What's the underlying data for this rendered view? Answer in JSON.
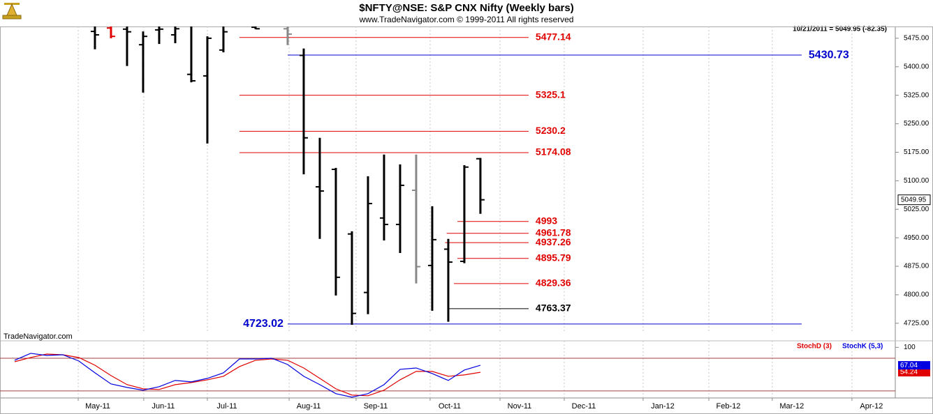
{
  "chart_data": [
    {
      "type": "ohlc",
      "title": "$NFTY@NSE:  S&P CNX Nifty  (Weekly bars)",
      "subtitle": "www.TradeNavigator.com © 1999-2011 All rights reserved",
      "info": "10/21/2011 = 5049.95 (-82.35)",
      "watermark": "TradeNavigator.com",
      "x": [
        0,
        1,
        2,
        3,
        4,
        5,
        6,
        7,
        8,
        10,
        12,
        13,
        14,
        15,
        16,
        17,
        18,
        19,
        20,
        21,
        22,
        23,
        24
      ],
      "open": [
        5493,
        5502,
        5499,
        5458,
        5497,
        5484,
        5380,
        5376,
        5444,
        5504,
        5500,
        5430,
        5084,
        5130,
        4960,
        4806,
        5002,
        4985,
        5075,
        4877,
        4920,
        4888,
        5158
      ],
      "high": [
        5506,
        5506,
        5506,
        5493,
        5506,
        5506,
        5506,
        5480,
        5506,
        5506,
        5506,
        5448,
        5213,
        5134,
        4967,
        5112,
        5169,
        5143,
        5169,
        5033,
        4947,
        5141,
        5160
      ],
      "low": [
        5446,
        5475,
        5402,
        5332,
        5460,
        5462,
        5359,
        5198,
        5438,
        5499,
        5457,
        5117,
        4947,
        4798,
        4721,
        4749,
        4943,
        4910,
        4830,
        4758,
        4729,
        4883,
        5013
      ],
      "close": [
        5484,
        5480,
        5492,
        5480,
        5499,
        5500,
        5363,
        5475,
        5492,
        5500,
        5486,
        5213,
        5073,
        4846,
        4751,
        5040,
        4985,
        5088,
        4874,
        4945,
        4886,
        5136,
        5049.95
      ],
      "colors": [
        "#000000",
        "#e00000",
        "#000000",
        "#000000",
        "#000000",
        "#000000",
        "#000000",
        "#000000",
        "#000000",
        "#000000",
        "#888888",
        "#000000",
        "#000000",
        "#000000",
        "#000000",
        "#000000",
        "#000000",
        "#000000",
        "#888888",
        "#000000",
        "#000000",
        "#000000",
        "#000000"
      ],
      "xlim": [
        -5.91,
        49.83
      ],
      "xticks": [
        {
          "value": -1.04,
          "label": "May-11"
        },
        {
          "value": 3.04,
          "label": "Jun-11"
        },
        {
          "value": 7.0,
          "label": "Jul-11"
        },
        {
          "value": 12.09,
          "label": "Aug-11"
        },
        {
          "value": 16.26,
          "label": "Sep-11"
        },
        {
          "value": 20.87,
          "label": "Oct-11"
        },
        {
          "value": 25.22,
          "label": "Nov-11"
        },
        {
          "value": 29.22,
          "label": "Dec-11"
        },
        {
          "value": 34.13,
          "label": "Jan-12"
        },
        {
          "value": 38.22,
          "label": "Feb-12"
        },
        {
          "value": 42.17,
          "label": "Mar-12"
        },
        {
          "value": 47.13,
          "label": "Apr-12"
        }
      ],
      "grid": "x",
      "ylim": [
        4699,
        5506
      ],
      "yticks": [
        {
          "value": 4725,
          "label": "4725.00"
        },
        {
          "value": 4800,
          "label": "4800.00"
        },
        {
          "value": 4875,
          "label": "4875.00"
        },
        {
          "value": 4950,
          "label": "4950.00"
        },
        {
          "value": 5025,
          "label": "5025.00"
        },
        {
          "value": 5100,
          "label": "5100.00"
        },
        {
          "value": 5175,
          "label": "5175.00"
        },
        {
          "value": 5250,
          "label": "5250.00"
        },
        {
          "value": 5325,
          "label": "5325.00"
        },
        {
          "value": 5400,
          "label": "5400.00"
        },
        {
          "value": 5475,
          "label": "5475.00"
        }
      ],
      "levels": [
        {
          "value": 5477.14,
          "color": "#e00000",
          "start": 9.0,
          "end": 27.0,
          "label_side": "right"
        },
        {
          "value": 5430.73,
          "color": "#0000cc",
          "start": 12.0,
          "end": 44.0,
          "label_side": "right"
        },
        {
          "value": 5325.1,
          "color": "#e00000",
          "start": 9.0,
          "end": 27.0,
          "label_side": "right"
        },
        {
          "value": 5230.2,
          "color": "#e00000",
          "start": 9.0,
          "end": 27.0,
          "label_side": "right"
        },
        {
          "value": 5174.08,
          "color": "#e00000",
          "start": 9.0,
          "end": 27.0,
          "label_side": "right"
        },
        {
          "value": 4993.0,
          "color": "#e00000",
          "start": 22.57,
          "end": 27.0,
          "label_side": "right"
        },
        {
          "value": 4961.78,
          "color": "#e00000",
          "start": 21.9,
          "end": 27.0,
          "label_side": "right"
        },
        {
          "value": 4937.26,
          "color": "#e00000",
          "start": 21.8,
          "end": 27.0,
          "label_side": "right"
        },
        {
          "value": 4895.79,
          "color": "#e00000",
          "start": 22.57,
          "end": 27.0,
          "label_side": "right"
        },
        {
          "value": 4829.36,
          "color": "#e00000",
          "start": 22.35,
          "end": 27.0,
          "label_side": "right"
        },
        {
          "value": 4763.37,
          "color": "#000000",
          "start": 22.0,
          "end": 27.0,
          "label_side": "right"
        },
        {
          "value": 4723.02,
          "color": "#0000cc",
          "start": 12.0,
          "end": 44.0,
          "label_side": "left"
        }
      ]
    },
    {
      "type": "line",
      "x": [
        -5,
        -4,
        -3,
        -2,
        -1,
        0,
        1,
        2,
        3,
        4,
        5,
        6,
        7,
        8,
        9,
        10,
        11,
        12,
        13,
        14,
        15,
        16,
        17,
        18,
        19,
        20,
        21,
        22,
        23,
        24
      ],
      "series": [
        {
          "name": "StochD (3)",
          "color": "#e00000",
          "values": [
            73.6,
            81.3,
            87.7,
            86.4,
            81.3,
            67.2,
            48.1,
            31.5,
            23.8,
            22.6,
            31.5,
            35.3,
            40.4,
            46.8,
            64.7,
            76.2,
            78.7,
            76.2,
            62.1,
            43.0,
            23.8,
            12.3,
            11.1,
            21.3,
            40.4,
            55.8,
            55.8,
            46.8,
            49.4,
            54.24
          ]
        },
        {
          "name": "StochK (5,3)",
          "color": "#0000e0",
          "values": [
            76.2,
            89.0,
            85.1,
            86.4,
            74.9,
            53.2,
            32.8,
            26.4,
            21.3,
            27.7,
            39.2,
            36.6,
            43.0,
            53.2,
            78.7,
            78.7,
            80.0,
            68.5,
            46.8,
            31.5,
            14.9,
            8.5,
            14.9,
            31.5,
            59.6,
            62.1,
            51.9,
            39.2,
            58.3,
            67.04
          ]
        }
      ],
      "ylim": [
        7,
        112
      ],
      "yticks": [
        100
      ],
      "levels": [
        80,
        20
      ],
      "level_color": "#a04040"
    }
  ]
}
